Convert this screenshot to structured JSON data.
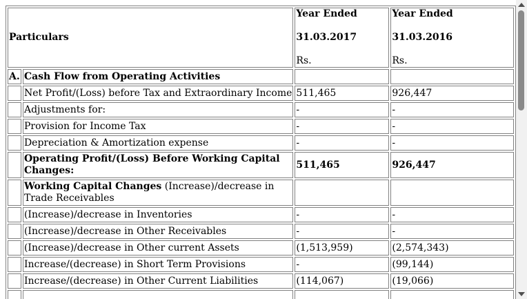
{
  "table": {
    "header": {
      "particulars": "Particulars",
      "col1": {
        "line1": "Year Ended",
        "line2": "31.03.2017",
        "unit": "Rs."
      },
      "col2": {
        "line1": "Year Ended",
        "line2": "31.03.2016",
        "unit": "Rs."
      }
    },
    "rows": [
      {
        "marker": "A.",
        "label": "Cash Flow from Operating Activities",
        "v2017": "",
        "v2016": ""
      },
      {
        "marker": "",
        "label": "Net Profit/(Loss) before Tax and Extraordinary Income",
        "v2017": "511,465",
        "v2016": "926,447"
      },
      {
        "marker": "",
        "label": "Adjustments for:",
        "v2017": "-",
        "v2016": "-"
      },
      {
        "marker": "",
        "label": "Provision for Income Tax",
        "v2017": "-",
        "v2016": "-"
      },
      {
        "marker": "",
        "label": "Depreciation & Amortization expense",
        "v2017": "-",
        "v2016": "-"
      },
      {
        "marker": "",
        "label": "Operating Profit/(Loss) Before Working Capital Changes:",
        "v2017": "511,465",
        "v2016": "926,447"
      },
      {
        "marker": "",
        "label_bold": "Working Capital Changes",
        "label_rest": " (Increase)/decrease in Trade Receivables",
        "v2017": "",
        "v2016": ""
      },
      {
        "marker": "",
        "label": "(Increase)/decrease in Inventories",
        "v2017": "-",
        "v2016": "-"
      },
      {
        "marker": "",
        "label": "(Increase)/decrease in Other Receivables",
        "v2017": "-",
        "v2016": "-"
      },
      {
        "marker": "",
        "label": "(Increase)/decrease in Other current Assets",
        "v2017": "(1,513,959)",
        "v2016": "(2,574,343)"
      },
      {
        "marker": "",
        "label": "Increase/(decrease) in Short Term Provisions",
        "v2017": "-",
        "v2016": "(99,144)"
      },
      {
        "marker": "",
        "label": "Increase/(decrease) in Other Current Liabilities",
        "v2017": "(114,067)",
        "v2016": "(19,066)"
      }
    ]
  }
}
